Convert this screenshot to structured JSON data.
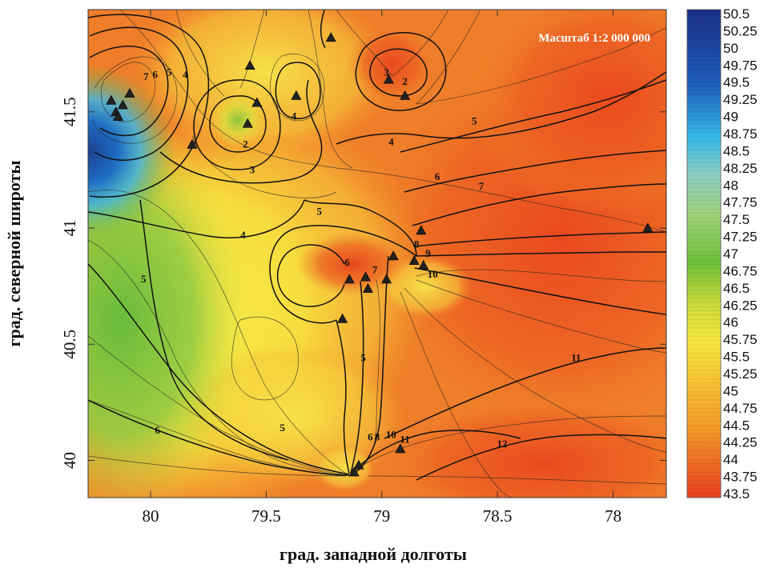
{
  "map": {
    "scale_label": "Масштаб 1:2 000 000",
    "x_axis_title": "град. западной долготы",
    "y_axis_title": "град. северной широты",
    "x_ticks": [
      "80",
      "79.5",
      "79",
      "78.5",
      "78"
    ],
    "y_ticks": [
      "41.5",
      "41",
      "40.5",
      "40"
    ],
    "x_range": [
      80.27,
      77.77
    ],
    "y_range": [
      39.84,
      41.94
    ],
    "colorbar_levels": [
      "50.5",
      "50.25",
      "50",
      "49.75",
      "49.5",
      "49.25",
      "49",
      "48.75",
      "48.5",
      "48.25",
      "48",
      "47.75",
      "47.5",
      "47.25",
      "47",
      "46.75",
      "46.5",
      "46.25",
      "46",
      "45.75",
      "45.5",
      "45.25",
      "45",
      "44.75",
      "44.5",
      "44.25",
      "44",
      "43.75",
      "43.5"
    ],
    "colors": {
      "high": "#1d3a8a",
      "cyan": "#35b8e6",
      "green": "#6fbf3a",
      "yellow": "#f7e940",
      "orange": "#f39a2a",
      "low": "#e83e20"
    },
    "stations": [
      {
        "lon": 80.17,
        "lat": 41.55
      },
      {
        "lon": 80.15,
        "lat": 41.5
      },
      {
        "lon": 80.12,
        "lat": 41.53
      },
      {
        "lon": 80.09,
        "lat": 41.58
      },
      {
        "lon": 80.14,
        "lat": 41.48
      },
      {
        "lon": 79.82,
        "lat": 41.36
      },
      {
        "lon": 79.58,
        "lat": 41.45
      },
      {
        "lon": 79.54,
        "lat": 41.54
      },
      {
        "lon": 79.57,
        "lat": 41.7
      },
      {
        "lon": 79.37,
        "lat": 41.57
      },
      {
        "lon": 79.22,
        "lat": 41.82
      },
      {
        "lon": 78.97,
        "lat": 41.64
      },
      {
        "lon": 78.9,
        "lat": 41.57
      },
      {
        "lon": 78.83,
        "lat": 40.99
      },
      {
        "lon": 78.95,
        "lat": 40.88
      },
      {
        "lon": 78.86,
        "lat": 40.86
      },
      {
        "lon": 78.82,
        "lat": 40.84
      },
      {
        "lon": 79.14,
        "lat": 40.78
      },
      {
        "lon": 79.07,
        "lat": 40.79
      },
      {
        "lon": 79.06,
        "lat": 40.74
      },
      {
        "lon": 78.98,
        "lat": 40.78
      },
      {
        "lon": 79.17,
        "lat": 40.61
      },
      {
        "lon": 77.85,
        "lat": 41.0
      },
      {
        "lon": 79.1,
        "lat": 39.98
      },
      {
        "lon": 79.12,
        "lat": 39.95
      },
      {
        "lon": 78.92,
        "lat": 40.05
      }
    ],
    "isoline_labels": [
      {
        "text": "7",
        "lon": 80.02,
        "lat": 41.65
      },
      {
        "text": "6",
        "lon": 79.98,
        "lat": 41.66
      },
      {
        "text": "5",
        "lon": 79.92,
        "lat": 41.67
      },
      {
        "text": "4",
        "lon": 79.85,
        "lat": 41.66
      },
      {
        "text": "2",
        "lon": 79.59,
        "lat": 41.36
      },
      {
        "text": "3",
        "lon": 79.56,
        "lat": 41.25
      },
      {
        "text": "4",
        "lon": 79.38,
        "lat": 41.48
      },
      {
        "text": "3",
        "lon": 78.98,
        "lat": 41.67
      },
      {
        "text": "2",
        "lon": 78.9,
        "lat": 41.63
      },
      {
        "text": "5",
        "lon": 78.6,
        "lat": 41.46
      },
      {
        "text": "4",
        "lon": 78.96,
        "lat": 41.37
      },
      {
        "text": "6",
        "lon": 78.76,
        "lat": 41.22
      },
      {
        "text": "7",
        "lon": 78.57,
        "lat": 41.18
      },
      {
        "text": "5",
        "lon": 79.27,
        "lat": 41.07
      },
      {
        "text": "4",
        "lon": 79.6,
        "lat": 40.97
      },
      {
        "text": "6",
        "lon": 79.15,
        "lat": 40.85
      },
      {
        "text": "7",
        "lon": 79.03,
        "lat": 40.82
      },
      {
        "text": "8",
        "lon": 78.85,
        "lat": 40.93
      },
      {
        "text": "9",
        "lon": 78.8,
        "lat": 40.89
      },
      {
        "text": "10",
        "lon": 78.78,
        "lat": 40.8
      },
      {
        "text": "5",
        "lon": 80.03,
        "lat": 40.78
      },
      {
        "text": "5",
        "lon": 79.08,
        "lat": 40.44
      },
      {
        "text": "11",
        "lon": 78.16,
        "lat": 40.44
      },
      {
        "text": "6",
        "lon": 79.97,
        "lat": 40.13
      },
      {
        "text": "5",
        "lon": 79.43,
        "lat": 40.14
      },
      {
        "text": "6",
        "lon": 79.05,
        "lat": 40.1
      },
      {
        "text": "8",
        "lon": 79.02,
        "lat": 40.1
      },
      {
        "text": "10",
        "lon": 78.96,
        "lat": 40.11
      },
      {
        "text": "11",
        "lon": 78.9,
        "lat": 40.09
      },
      {
        "text": "12",
        "lon": 78.48,
        "lat": 40.07
      }
    ]
  }
}
